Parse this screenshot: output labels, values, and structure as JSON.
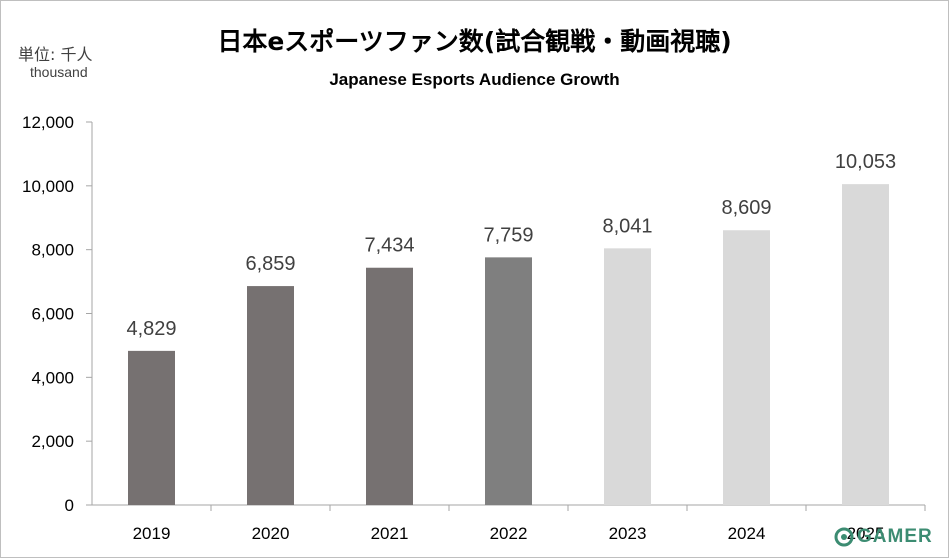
{
  "header": {
    "title": "日本eスポーツファン数(試合観戦・動画視聴)",
    "subtitle": "Japanese Esports Audience Growth",
    "unit_ja": "単位: 千人",
    "unit_en": "thousand"
  },
  "watermark": {
    "text": "GAMER",
    "icon": "gamer-logo-icon",
    "color": "#3c8c72"
  },
  "chart_data": {
    "type": "bar",
    "title": "日本eスポーツファン数(試合観戦・動画視聴)",
    "subtitle": "Japanese Esports Audience Growth",
    "categories": [
      "2019",
      "2020",
      "2021",
      "2022",
      "2023",
      "2024",
      "2025"
    ],
    "values": [
      4829,
      6859,
      7434,
      7759,
      8041,
      8609,
      10053
    ],
    "value_labels": [
      "4,829",
      "6,859",
      "7,434",
      "7,759",
      "8,041",
      "8,609",
      "10,053"
    ],
    "bar_colors": [
      "#767171",
      "#767171",
      "#767171",
      "#7f7f7f",
      "#d9d9d9",
      "#d9d9d9",
      "#d9d9d9"
    ],
    "ylim": [
      0,
      12000
    ],
    "yticks": [
      0,
      2000,
      4000,
      6000,
      8000,
      10000,
      12000
    ],
    "ytick_labels": [
      "0",
      "2,000",
      "4,000",
      "6,000",
      "8,000",
      "10,000",
      "12,000"
    ],
    "grid": false,
    "legend": "none"
  }
}
